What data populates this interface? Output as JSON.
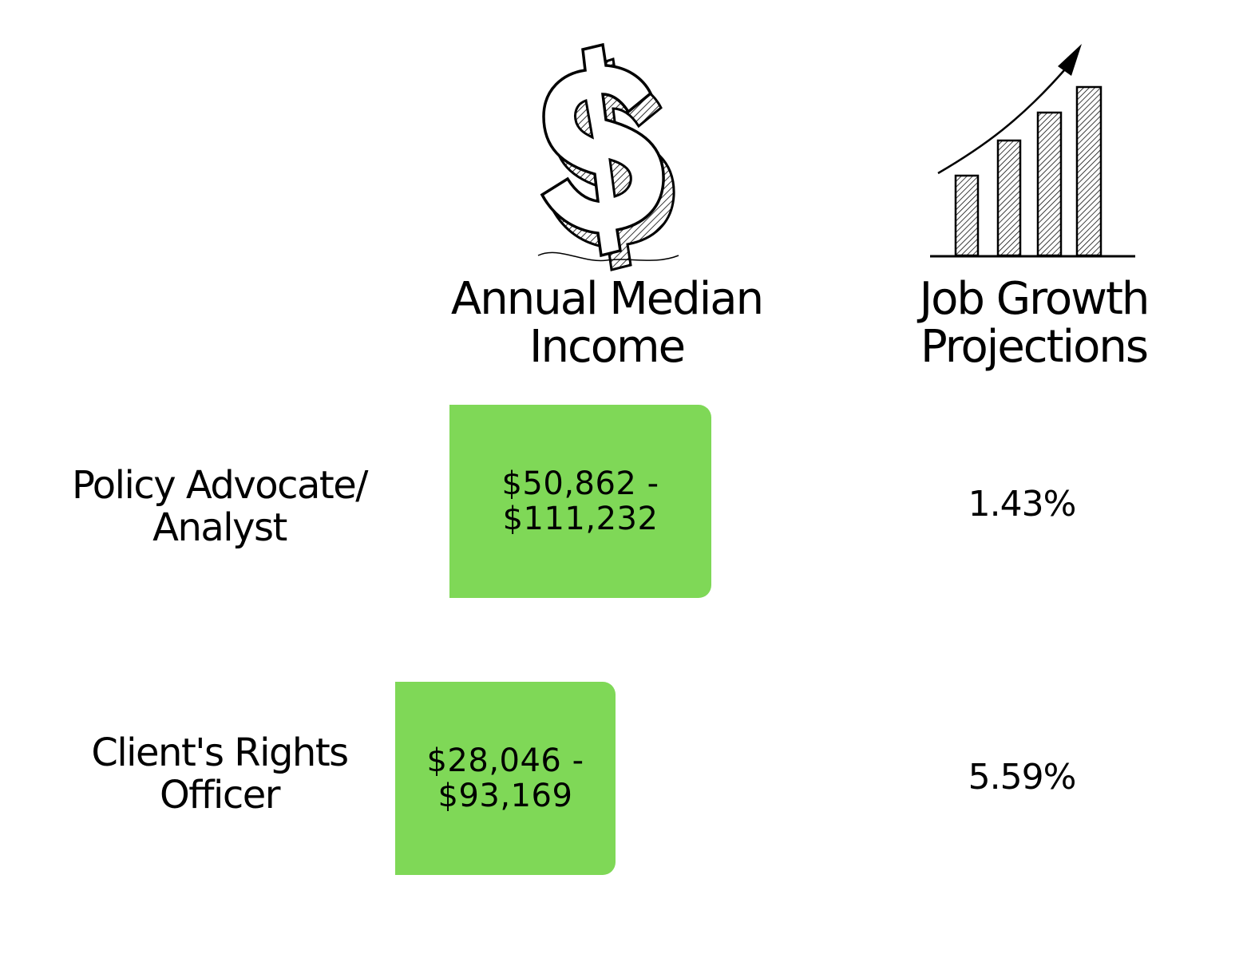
{
  "icons": {
    "income": "dollar-sign-icon",
    "growth": "bar-chart-growth-icon"
  },
  "headers": {
    "income_line1": "Annual Median",
    "income_line2": "Income",
    "growth_line1": "Job Growth",
    "growth_line2": "Projections"
  },
  "rows": [
    {
      "label_line1": "Policy Advocate/",
      "label_line2": "Analyst",
      "income_line1": "$50,862 -",
      "income_line2": "$111,232",
      "growth": "1.43%"
    },
    {
      "label_line1": "Client's Rights",
      "label_line2": "Officer",
      "income_line1": "$28,046 -",
      "income_line2": "$93,169",
      "growth": "5.59%"
    }
  ],
  "colors": {
    "income_box": "#7fd857",
    "text": "#000000"
  }
}
